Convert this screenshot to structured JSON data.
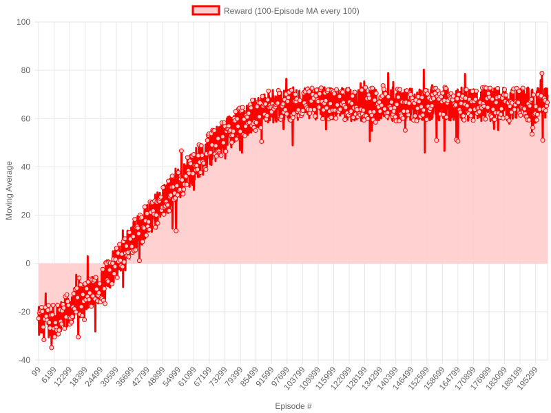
{
  "chart_data": {
    "type": "line",
    "legend": {
      "label": "Reward (100-Episode MA every 100)",
      "position": "top"
    },
    "xlabel": "Episode #",
    "ylabel": "Moving Average",
    "ylim": [
      -40,
      100
    ],
    "yticks": [
      -40,
      -20,
      0,
      20,
      40,
      60,
      80,
      100
    ],
    "xticks": [
      "99",
      "6199",
      "12299",
      "18399",
      "24499",
      "30599",
      "36699",
      "42799",
      "48899",
      "54999",
      "61099",
      "67199",
      "73299",
      "79399",
      "85499",
      "91599",
      "97699",
      "103799",
      "109899",
      "115999",
      "122099",
      "128199",
      "134299",
      "140399",
      "146499",
      "152599",
      "158699",
      "164799",
      "170899",
      "176999",
      "183099",
      "189199",
      "195299"
    ],
    "x_range": [
      99,
      199999
    ],
    "grid": true,
    "fill": "origin",
    "series": [
      {
        "name": "Reward (100-Episode MA every 100)",
        "color": "#ff0000",
        "fill_color": "#ffcccc",
        "trend_x": [
          99,
          6199,
          12299,
          18399,
          24499,
          30599,
          36699,
          42799,
          48899,
          54999,
          61099,
          67199,
          73299,
          79399,
          85499,
          91599,
          97699,
          103799,
          109899,
          115999,
          122099,
          128199,
          134299,
          140399,
          146499,
          152599,
          158699,
          164799,
          170899,
          176999,
          183099,
          189199,
          195299,
          199999
        ],
        "trend_y": [
          -25,
          -24,
          -19,
          -14,
          -9,
          0,
          10,
          18,
          25,
          33,
          40,
          47,
          53,
          58,
          62,
          65,
          66,
          66,
          66,
          66,
          66,
          66,
          66,
          66,
          66,
          66,
          66,
          66,
          66,
          66,
          66,
          66,
          66,
          66
        ],
        "noise_amplitude": 7,
        "n_points": 2000
      }
    ]
  }
}
